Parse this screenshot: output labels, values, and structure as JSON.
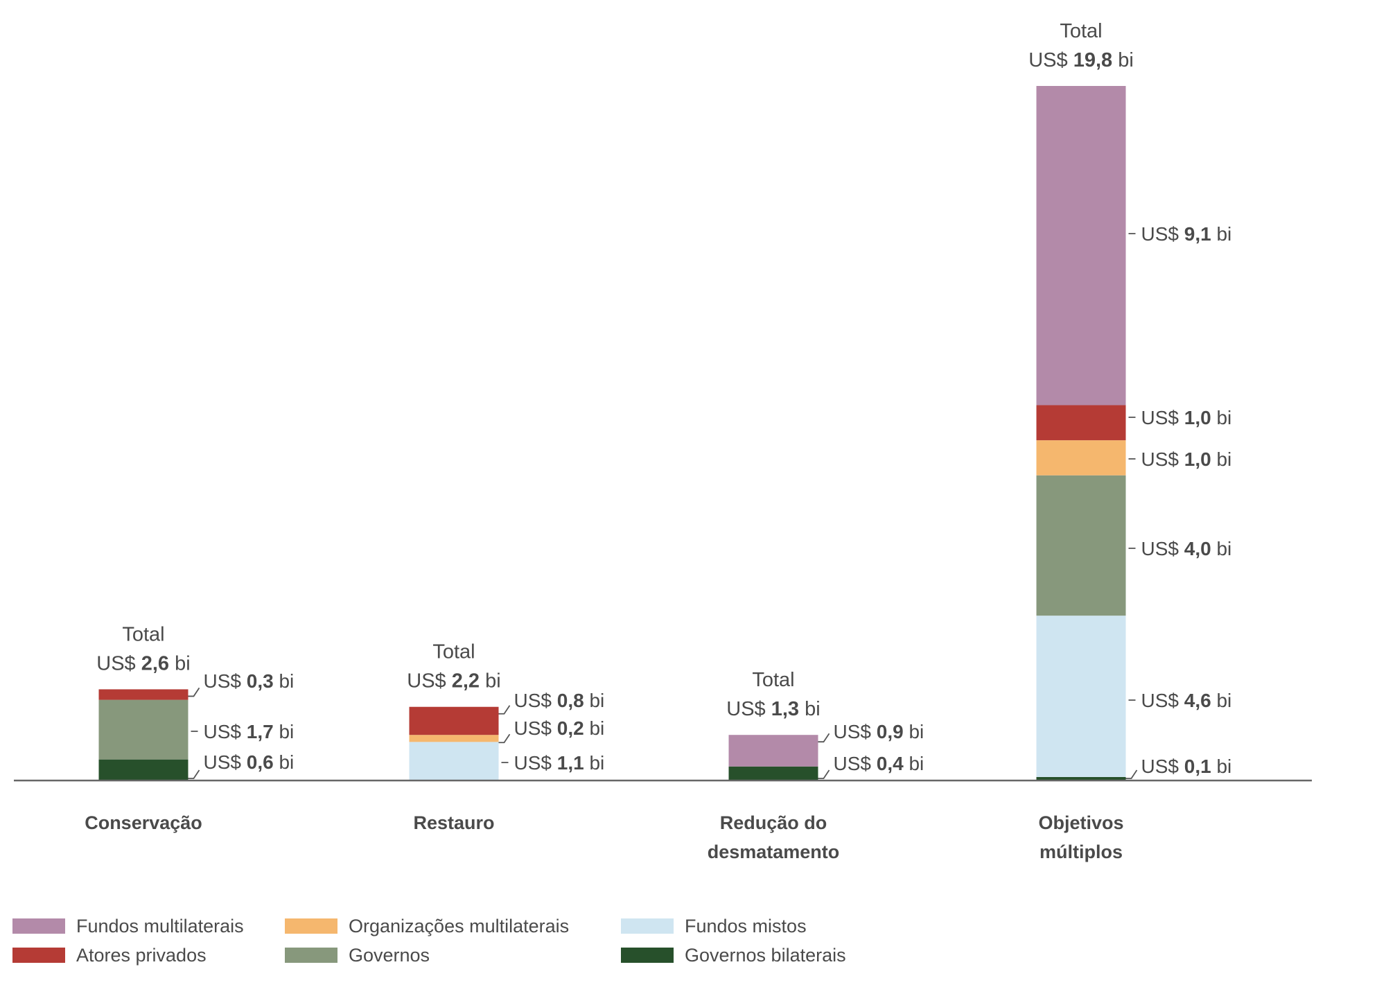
{
  "chart_data": {
    "type": "bar",
    "stacked": true,
    "title": "",
    "xlabel": "",
    "ylabel": "",
    "unit_prefix": "US$",
    "unit_suffix": "bi",
    "total_word": "Total",
    "grid": false,
    "ylim": [
      0,
      19.8
    ],
    "legend_position": "bottom",
    "categories": [
      "Conservação",
      "Restauro",
      "Redução do desmatamento",
      "Objetivos múltiplos"
    ],
    "category_lines": [
      [
        "Conservação"
      ],
      [
        "Restauro"
      ],
      [
        "Redução do",
        "desmatamento"
      ],
      [
        "Objetivos",
        "múltiplos"
      ]
    ],
    "totals": [
      "2,6",
      "2,2",
      "1,3",
      "19,8"
    ],
    "series": [
      {
        "name": "Governos bilaterais",
        "color": "#27502b",
        "values": [
          0.6,
          0,
          0.4,
          0.1
        ]
      },
      {
        "name": "Fundos mistos",
        "color": "#cfe5f1",
        "values": [
          0,
          1.1,
          0,
          4.6
        ]
      },
      {
        "name": "Governos",
        "color": "#87987c",
        "values": [
          1.7,
          0,
          0,
          4.0
        ]
      },
      {
        "name": "Organizações multilaterais",
        "color": "#f5b76e",
        "values": [
          0,
          0.2,
          0,
          1.0
        ]
      },
      {
        "name": "Atores privados",
        "color": "#b53b35",
        "values": [
          0.3,
          0.8,
          0,
          1.0
        ]
      },
      {
        "name": "Fundos multilaterais",
        "color": "#b38aa9",
        "values": [
          0,
          0,
          0.9,
          9.1
        ]
      }
    ],
    "value_labels": [
      [
        {
          "series": "Atores privados",
          "text": "0,3"
        },
        {
          "series": "Governos",
          "text": "1,7"
        },
        {
          "series": "Governos bilaterais",
          "text": "0,6"
        }
      ],
      [
        {
          "series": "Atores privados",
          "text": "0,8"
        },
        {
          "series": "Organizações multilaterais",
          "text": "0,2"
        },
        {
          "series": "Fundos mistos",
          "text": "1,1"
        }
      ],
      [
        {
          "series": "Fundos multilaterais",
          "text": "0,9"
        },
        {
          "series": "Governos bilaterais",
          "text": "0,4"
        }
      ],
      [
        {
          "series": "Fundos multilaterais",
          "text": "9,1"
        },
        {
          "series": "Atores privados",
          "text": "1,0"
        },
        {
          "series": "Organizações multilaterais",
          "text": "1,0"
        },
        {
          "series": "Governos",
          "text": "4,0"
        },
        {
          "series": "Fundos mistos",
          "text": "4,6"
        },
        {
          "series": "Governos bilaterais",
          "text": "0,1"
        }
      ]
    ],
    "legend": [
      {
        "name": "Fundos multilaterais",
        "color": "#b38aa9"
      },
      {
        "name": "Atores privados",
        "color": "#b53b35"
      },
      {
        "name": "Organizações multilaterais",
        "color": "#f5b76e"
      },
      {
        "name": "Governos",
        "color": "#87987c"
      },
      {
        "name": "Fundos mistos",
        "color": "#cfe5f1"
      },
      {
        "name": "Governos bilaterais",
        "color": "#27502b"
      }
    ]
  }
}
